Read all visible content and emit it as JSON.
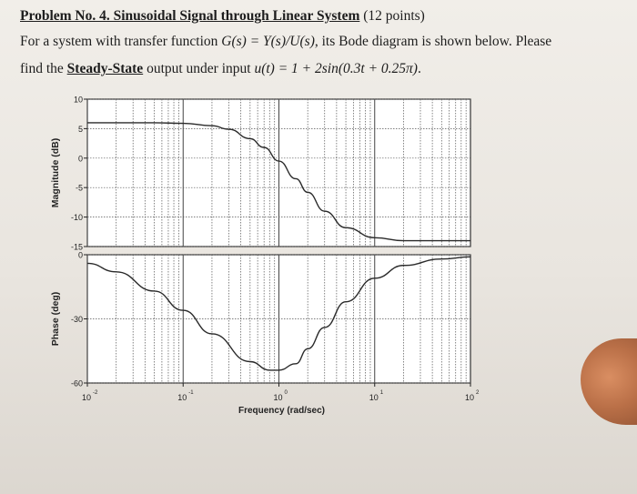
{
  "problem": {
    "heading": "Problem No. 4. Sinusoidal Signal through Linear System",
    "points": "(12 points)",
    "line2_a": "For a system with transfer function ",
    "line2_formula": "G(s) = Y(s)/U(s)",
    "line2_b": ", its Bode diagram is shown below. Please",
    "line3_a": "find the ",
    "line3_bold": "Steady-State",
    "line3_b": " output under input ",
    "line3_formula": "u(t) = 1 + 2sin(0.3t + 0.25π)",
    "line3_end": "."
  },
  "chart_data": [
    {
      "type": "line",
      "title": "",
      "xlabel": "",
      "ylabel": "Magnitude (dB)",
      "xscale": "log",
      "xlim": [
        0.01,
        100
      ],
      "ylim": [
        -15,
        10
      ],
      "yticks": [
        10,
        5,
        0,
        -5,
        -10,
        -15
      ],
      "grid": true,
      "series": [
        {
          "x": [
            0.01,
            0.05,
            0.1,
            0.2,
            0.3,
            0.5,
            0.7,
            1,
            1.5,
            2,
            3,
            5,
            10,
            20,
            100
          ],
          "y": [
            6,
            6,
            5.9,
            5.5,
            4.9,
            3.3,
            1.8,
            -0.5,
            -3.5,
            -5.8,
            -9,
            -11.8,
            -13.5,
            -14,
            -14
          ]
        }
      ]
    },
    {
      "type": "line",
      "title": "",
      "xlabel": "Frequency (rad/sec)",
      "ylabel": "Phase (deg)",
      "xscale": "log",
      "xlim": [
        0.01,
        100
      ],
      "ylim": [
        -60,
        0
      ],
      "yticks": [
        0,
        -30,
        -60
      ],
      "xticks": [
        "10^-2",
        "10^-1",
        "10^0",
        "10^1",
        "10^2"
      ],
      "grid": true,
      "series": [
        {
          "x": [
            0.01,
            0.02,
            0.05,
            0.1,
            0.2,
            0.5,
            0.8,
            1,
            1.5,
            2,
            3,
            5,
            10,
            20,
            50,
            100
          ],
          "y": [
            -4,
            -8,
            -17,
            -26,
            -37,
            -50,
            -54,
            -54,
            -51,
            -44,
            -34,
            -22,
            -11,
            -5,
            -2,
            -1
          ]
        }
      ]
    }
  ]
}
